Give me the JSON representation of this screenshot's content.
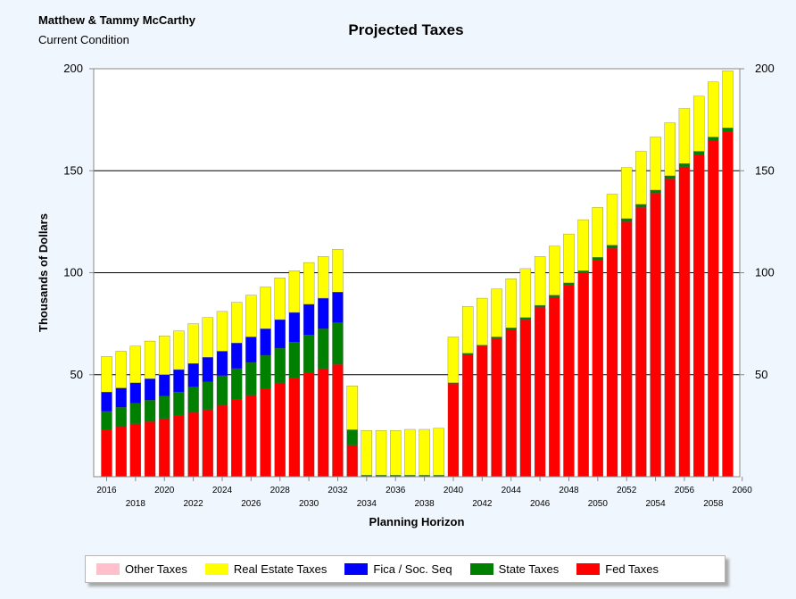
{
  "header": {
    "client_name": "Matthew & Tammy McCarthy",
    "subtitle": "Current Condition"
  },
  "chart_data": {
    "type": "bar",
    "stacked": true,
    "title": "Projected Taxes",
    "xlabel": "Planning Horizon",
    "ylabel": "Thousands of Dollars",
    "ylim": [
      0,
      200
    ],
    "yticks": [
      50,
      100,
      150,
      200
    ],
    "grid": "horizontal",
    "legend_position": "bottom",
    "categories": [
      "2016",
      "2017",
      "2018",
      "2019",
      "2020",
      "2021",
      "2022",
      "2023",
      "2024",
      "2025",
      "2026",
      "2027",
      "2028",
      "2029",
      "2030",
      "2031",
      "2032",
      "2033",
      "2034",
      "2035",
      "2036",
      "2037",
      "2038",
      "2039",
      "2040",
      "2041",
      "2042",
      "2043",
      "2044",
      "2045",
      "2046",
      "2047",
      "2048",
      "2049",
      "2050",
      "2051",
      "2052",
      "2053",
      "2054",
      "2055",
      "2056",
      "2057",
      "2058",
      "2059",
      "2060"
    ],
    "series": [
      {
        "name": "Fed Taxes",
        "color": "#ff0000",
        "values": [
          23,
          24.5,
          26,
          27,
          28.5,
          30,
          31.5,
          33,
          35,
          38,
          40,
          43,
          46,
          48.5,
          51,
          53,
          55,
          15.5,
          0.4,
          0.4,
          0.4,
          0.4,
          0.4,
          0.4,
          45.5,
          60,
          64,
          68,
          72,
          77,
          83,
          88,
          94,
          100,
          106,
          112,
          125,
          132,
          139,
          146,
          152,
          158,
          165,
          169,
          0
        ]
      },
      {
        "name": "State Taxes",
        "color": "#008000",
        "values": [
          9,
          9.5,
          10,
          10.5,
          11,
          11.5,
          12.5,
          13.5,
          14.5,
          15,
          16,
          16.5,
          17,
          17.5,
          18.5,
          19.5,
          20.5,
          7.5,
          0.3,
          0.3,
          0.3,
          0.3,
          0.3,
          0.3,
          0.5,
          0.5,
          0.5,
          0.5,
          1,
          1,
          1,
          1,
          1,
          1,
          1.5,
          1.5,
          1.5,
          1.5,
          1.5,
          1.5,
          1.5,
          1.5,
          1.5,
          2,
          0
        ]
      },
      {
        "name": "Fica / Soc. Seq",
        "color": "#0000ff",
        "values": [
          9.5,
          9.5,
          10,
          10.5,
          10.5,
          11,
          11.5,
          12,
          12,
          12.5,
          12.5,
          13,
          14,
          14.5,
          15,
          15,
          15,
          0,
          0,
          0,
          0,
          0,
          0,
          0,
          0,
          0,
          0,
          0,
          0,
          0,
          0,
          0,
          0,
          0,
          0,
          0,
          0,
          0,
          0,
          0,
          0,
          0,
          0,
          0,
          0
        ]
      },
      {
        "name": "Real Estate Taxes",
        "color": "#ffff00",
        "values": [
          17.5,
          18,
          18,
          18.5,
          19,
          19,
          19.5,
          19.5,
          19.5,
          20,
          20.5,
          20.5,
          20.5,
          20.5,
          20.5,
          20.5,
          21,
          21.5,
          22,
          22,
          22,
          22.5,
          22.5,
          23,
          22.5,
          23,
          23,
          23.5,
          24,
          24,
          24,
          24,
          24,
          25,
          24.5,
          25,
          25,
          26,
          26,
          26,
          27,
          27,
          27,
          28,
          0
        ]
      },
      {
        "name": "Other Taxes",
        "color": "#ffc0cb",
        "values": [
          0,
          0,
          0,
          0,
          0,
          0,
          0,
          0,
          0,
          0,
          0,
          0,
          0,
          0,
          0,
          0,
          0,
          0,
          0,
          0,
          0,
          0,
          0,
          0,
          0,
          0,
          0,
          0,
          0,
          0,
          0,
          0,
          0,
          0,
          0,
          0,
          0,
          0,
          0,
          0,
          0,
          0,
          0,
          0,
          0
        ]
      }
    ],
    "legend_order": [
      "Other Taxes",
      "Real Estate Taxes",
      "Fica / Soc. Seq",
      "State Taxes",
      "Fed Taxes"
    ],
    "xtick_upper": [
      "2016",
      "2020",
      "2024",
      "2028",
      "2032",
      "2036",
      "2040",
      "2044",
      "2048",
      "2052",
      "2056",
      "2060"
    ],
    "xtick_lower": [
      "2018",
      "2022",
      "2026",
      "2030",
      "2034",
      "2038",
      "2042",
      "2046",
      "2050",
      "2054",
      "2058"
    ]
  }
}
